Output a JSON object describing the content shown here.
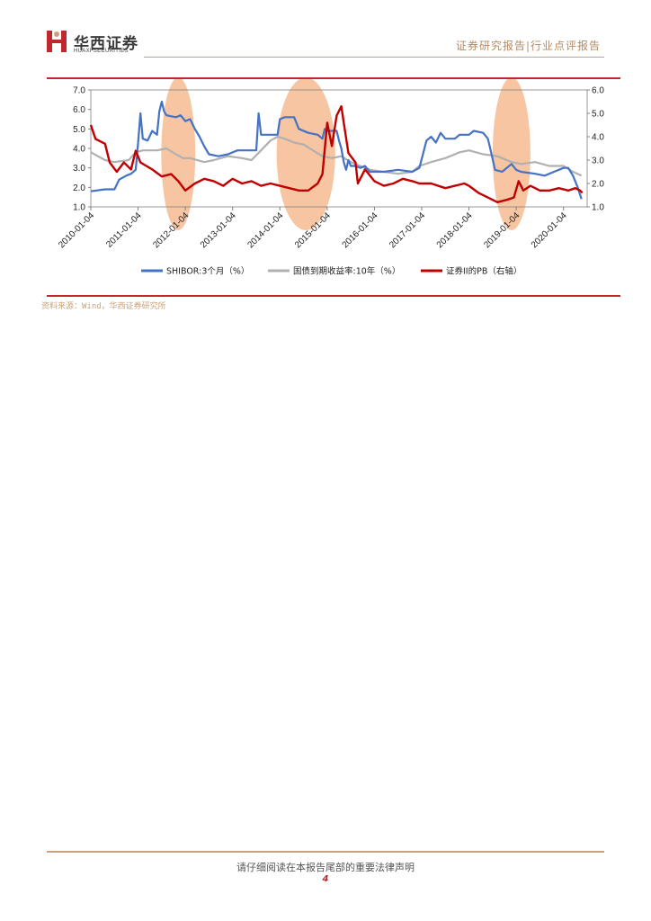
{
  "header": {
    "logo_cn": "华西证券",
    "logo_en": "HUAXI SECURITIES",
    "report_type": "证券研究报告|行业点评报告"
  },
  "colors": {
    "shibor": "#4472c4",
    "bond": "#b0b0b0",
    "pb": "#c00000",
    "highlight": "#f4b183",
    "brand_red": "#c1272d",
    "gold": "#c9a27c"
  },
  "chart_data": {
    "type": "line",
    "x_ticks": [
      "2010-01-04",
      "2011-01-04",
      "2012-01-04",
      "2013-01-04",
      "2014-01-04",
      "2015-01-04",
      "2016-01-04",
      "2017-01-04",
      "2018-01-04",
      "2019-01-04",
      "2020-01-04"
    ],
    "x_range": [
      2010.0,
      2020.5
    ],
    "y_left": {
      "ticks": [
        "7.0",
        "6.0",
        "5.0",
        "4.0",
        "3.0",
        "2.0",
        "1.0"
      ],
      "range": [
        1.0,
        7.0
      ]
    },
    "y_right": {
      "ticks": [
        "6.0",
        "5.0",
        "4.0",
        "3.0",
        "2.0",
        "1.0"
      ],
      "range": [
        1.0,
        6.0
      ]
    },
    "highlights": [
      {
        "center_year": 2011.85,
        "half_width_years": 0.36
      },
      {
        "center_year": 2014.55,
        "half_width_years": 0.62
      },
      {
        "center_year": 2018.9,
        "half_width_years": 0.4
      }
    ],
    "series": [
      {
        "name": "SHIBOR:3个月（%）",
        "axis": "left",
        "points": [
          [
            2010.0,
            1.8
          ],
          [
            2010.3,
            1.9
          ],
          [
            2010.5,
            1.9
          ],
          [
            2010.6,
            2.4
          ],
          [
            2010.75,
            2.6
          ],
          [
            2010.85,
            2.7
          ],
          [
            2010.95,
            2.9
          ],
          [
            2011.0,
            4.3
          ],
          [
            2011.05,
            5.8
          ],
          [
            2011.1,
            4.5
          ],
          [
            2011.2,
            4.4
          ],
          [
            2011.3,
            4.9
          ],
          [
            2011.4,
            4.7
          ],
          [
            2011.45,
            5.9
          ],
          [
            2011.5,
            6.4
          ],
          [
            2011.55,
            5.9
          ],
          [
            2011.6,
            5.7
          ],
          [
            2011.8,
            5.6
          ],
          [
            2011.9,
            5.7
          ],
          [
            2012.0,
            5.4
          ],
          [
            2012.1,
            5.5
          ],
          [
            2012.2,
            5.0
          ],
          [
            2012.3,
            4.6
          ],
          [
            2012.4,
            4.1
          ],
          [
            2012.5,
            3.7
          ],
          [
            2012.7,
            3.6
          ],
          [
            2012.9,
            3.7
          ],
          [
            2013.1,
            3.9
          ],
          [
            2013.3,
            3.9
          ],
          [
            2013.5,
            3.9
          ],
          [
            2013.55,
            5.8
          ],
          [
            2013.6,
            4.7
          ],
          [
            2013.8,
            4.7
          ],
          [
            2013.95,
            4.7
          ],
          [
            2014.0,
            5.5
          ],
          [
            2014.1,
            5.6
          ],
          [
            2014.3,
            5.6
          ],
          [
            2014.4,
            5.0
          ],
          [
            2014.6,
            4.8
          ],
          [
            2014.8,
            4.7
          ],
          [
            2014.9,
            4.5
          ],
          [
            2014.95,
            5.0
          ],
          [
            2015.0,
            4.9
          ],
          [
            2015.1,
            4.9
          ],
          [
            2015.2,
            4.9
          ],
          [
            2015.25,
            4.4
          ],
          [
            2015.3,
            4.0
          ],
          [
            2015.35,
            3.3
          ],
          [
            2015.4,
            2.9
          ],
          [
            2015.45,
            3.4
          ],
          [
            2015.5,
            3.1
          ],
          [
            2015.6,
            3.1
          ],
          [
            2015.7,
            3.0
          ],
          [
            2015.8,
            3.1
          ],
          [
            2015.9,
            2.8
          ],
          [
            2016.2,
            2.8
          ],
          [
            2016.5,
            2.9
          ],
          [
            2016.8,
            2.8
          ],
          [
            2016.95,
            3.0
          ],
          [
            2017.1,
            4.4
          ],
          [
            2017.2,
            4.6
          ],
          [
            2017.3,
            4.3
          ],
          [
            2017.4,
            4.8
          ],
          [
            2017.5,
            4.5
          ],
          [
            2017.7,
            4.5
          ],
          [
            2017.8,
            4.7
          ],
          [
            2018.0,
            4.7
          ],
          [
            2018.1,
            4.9
          ],
          [
            2018.3,
            4.8
          ],
          [
            2018.4,
            4.5
          ],
          [
            2018.45,
            4.0
          ],
          [
            2018.55,
            2.9
          ],
          [
            2018.7,
            2.8
          ],
          [
            2018.9,
            3.2
          ],
          [
            2019.0,
            2.9
          ],
          [
            2019.1,
            2.8
          ],
          [
            2019.4,
            2.7
          ],
          [
            2019.6,
            2.6
          ],
          [
            2019.8,
            2.8
          ],
          [
            2020.0,
            3.0
          ],
          [
            2020.1,
            3.0
          ],
          [
            2020.2,
            2.6
          ],
          [
            2020.3,
            2.0
          ],
          [
            2020.38,
            1.4
          ]
        ]
      },
      {
        "name": "国债到期收益率:10年（%）",
        "axis": "left",
        "points": [
          [
            2010.0,
            3.8
          ],
          [
            2010.3,
            3.4
          ],
          [
            2010.5,
            3.3
          ],
          [
            2010.8,
            3.4
          ],
          [
            2010.95,
            3.8
          ],
          [
            2011.1,
            3.9
          ],
          [
            2011.4,
            3.9
          ],
          [
            2011.6,
            4.0
          ],
          [
            2011.8,
            3.7
          ],
          [
            2011.95,
            3.5
          ],
          [
            2012.1,
            3.5
          ],
          [
            2012.4,
            3.3
          ],
          [
            2012.6,
            3.4
          ],
          [
            2012.9,
            3.6
          ],
          [
            2013.2,
            3.5
          ],
          [
            2013.4,
            3.4
          ],
          [
            2013.6,
            3.9
          ],
          [
            2013.8,
            4.4
          ],
          [
            2013.95,
            4.6
          ],
          [
            2014.1,
            4.5
          ],
          [
            2014.3,
            4.3
          ],
          [
            2014.5,
            4.2
          ],
          [
            2014.7,
            3.9
          ],
          [
            2014.9,
            3.6
          ],
          [
            2015.1,
            3.5
          ],
          [
            2015.3,
            3.6
          ],
          [
            2015.5,
            3.3
          ],
          [
            2015.7,
            3.1
          ],
          [
            2015.9,
            2.9
          ],
          [
            2016.2,
            2.8
          ],
          [
            2016.5,
            2.7
          ],
          [
            2016.8,
            2.8
          ],
          [
            2016.95,
            3.1
          ],
          [
            2017.2,
            3.3
          ],
          [
            2017.5,
            3.5
          ],
          [
            2017.8,
            3.8
          ],
          [
            2018.0,
            3.9
          ],
          [
            2018.3,
            3.7
          ],
          [
            2018.6,
            3.6
          ],
          [
            2018.9,
            3.3
          ],
          [
            2019.1,
            3.2
          ],
          [
            2019.4,
            3.3
          ],
          [
            2019.7,
            3.1
          ],
          [
            2020.0,
            3.1
          ],
          [
            2020.2,
            2.8
          ],
          [
            2020.38,
            2.6
          ]
        ]
      },
      {
        "name": "证券II的PB（右轴）",
        "axis": "right",
        "points": [
          [
            2010.0,
            4.5
          ],
          [
            2010.1,
            3.9
          ],
          [
            2010.3,
            3.7
          ],
          [
            2010.4,
            2.9
          ],
          [
            2010.55,
            2.5
          ],
          [
            2010.7,
            2.9
          ],
          [
            2010.85,
            2.6
          ],
          [
            2010.95,
            3.4
          ],
          [
            2011.05,
            2.9
          ],
          [
            2011.3,
            2.6
          ],
          [
            2011.5,
            2.3
          ],
          [
            2011.7,
            2.4
          ],
          [
            2011.85,
            2.1
          ],
          [
            2012.0,
            1.7
          ],
          [
            2012.2,
            2.0
          ],
          [
            2012.4,
            2.2
          ],
          [
            2012.6,
            2.1
          ],
          [
            2012.8,
            1.9
          ],
          [
            2013.0,
            2.2
          ],
          [
            2013.2,
            2.0
          ],
          [
            2013.4,
            2.1
          ],
          [
            2013.6,
            1.9
          ],
          [
            2013.8,
            2.0
          ],
          [
            2014.0,
            1.9
          ],
          [
            2014.2,
            1.8
          ],
          [
            2014.4,
            1.7
          ],
          [
            2014.6,
            1.7
          ],
          [
            2014.8,
            2.0
          ],
          [
            2014.9,
            2.4
          ],
          [
            2015.0,
            4.6
          ],
          [
            2015.1,
            3.6
          ],
          [
            2015.2,
            4.9
          ],
          [
            2015.3,
            5.3
          ],
          [
            2015.35,
            4.6
          ],
          [
            2015.45,
            3.3
          ],
          [
            2015.6,
            2.9
          ],
          [
            2015.65,
            2.0
          ],
          [
            2015.8,
            2.6
          ],
          [
            2016.0,
            2.1
          ],
          [
            2016.2,
            1.9
          ],
          [
            2016.4,
            2.0
          ],
          [
            2016.6,
            2.2
          ],
          [
            2016.8,
            2.1
          ],
          [
            2016.95,
            2.0
          ],
          [
            2017.2,
            2.0
          ],
          [
            2017.5,
            1.8
          ],
          [
            2017.7,
            1.9
          ],
          [
            2017.9,
            2.0
          ],
          [
            2018.0,
            1.9
          ],
          [
            2018.2,
            1.6
          ],
          [
            2018.4,
            1.4
          ],
          [
            2018.6,
            1.2
          ],
          [
            2018.8,
            1.3
          ],
          [
            2018.95,
            1.4
          ],
          [
            2019.05,
            2.1
          ],
          [
            2019.15,
            1.7
          ],
          [
            2019.3,
            1.9
          ],
          [
            2019.5,
            1.7
          ],
          [
            2019.7,
            1.7
          ],
          [
            2019.9,
            1.8
          ],
          [
            2020.1,
            1.7
          ],
          [
            2020.25,
            1.8
          ],
          [
            2020.35,
            1.7
          ],
          [
            2020.4,
            1.6
          ]
        ]
      }
    ]
  },
  "source_note": "资料来源：Wind，华西证券研究所",
  "footer": {
    "disclaimer": "请仔细阅读在本报告尾部的重要法律声明",
    "page_number": "4"
  }
}
